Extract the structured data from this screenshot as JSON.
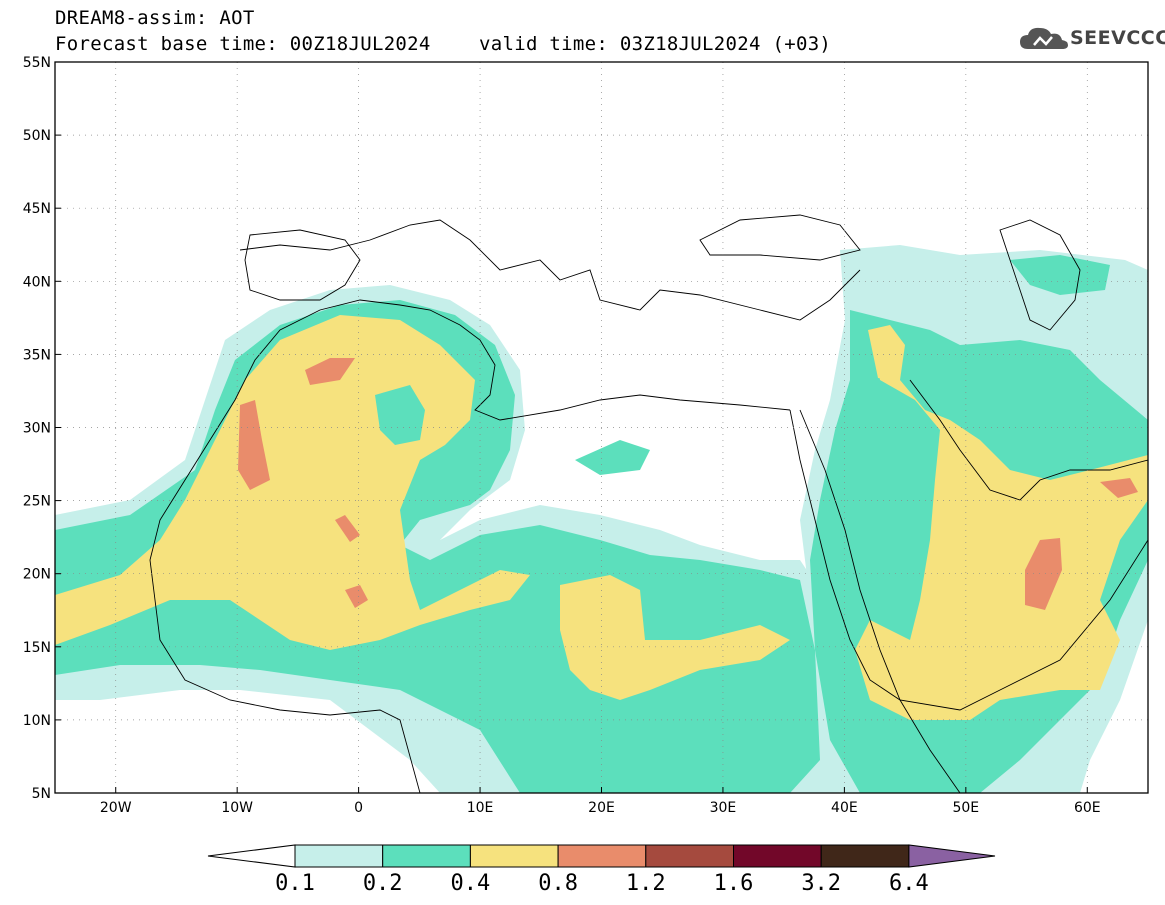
{
  "header": {
    "line1": "DREAM8-assim: AOT",
    "line2": "Forecast base time: 00Z18JUL2024",
    "valid": "valid time: 03Z18JUL2024 (+03)",
    "logo_text": "SEEVCCC"
  },
  "map": {
    "extent": {
      "lon_min": -25,
      "lon_max": 65,
      "lat_min": 5,
      "lat_max": 55
    },
    "lat_labels": [
      "55N",
      "50N",
      "45N",
      "40N",
      "35N",
      "30N",
      "25N",
      "20N",
      "15N",
      "10N",
      "5N"
    ],
    "lon_labels": [
      "20W",
      "10W",
      "0",
      "10E",
      "20E",
      "30E",
      "40E",
      "50E",
      "60E"
    ]
  },
  "colorbar": {
    "bounds": [
      "0.1",
      "0.2",
      "0.4",
      "0.8",
      "1.2",
      "1.6",
      "3.2",
      "6.4"
    ],
    "colors": [
      "#c6efea",
      "#5cdfbc",
      "#f6e27e",
      "#e98c6b",
      "#a54a3e",
      "#720729",
      "#402719"
    ],
    "under_color": "#ffffff",
    "over_color": "#8a61a2"
  },
  "colors": {
    "very_low": "#c6efea",
    "low": "#5cdfbc",
    "mid": "#f6e27e",
    "high": "#e98c6b"
  }
}
